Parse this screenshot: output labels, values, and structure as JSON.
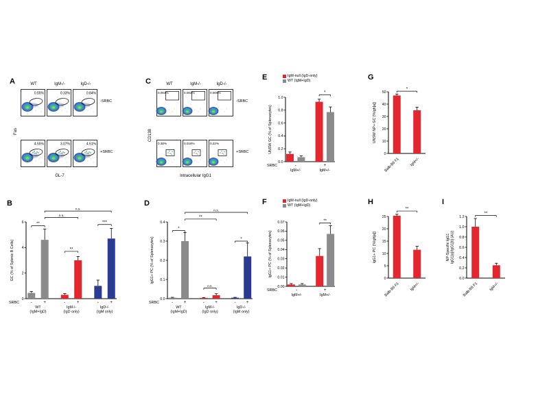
{
  "colors": {
    "red": "#e4272e",
    "gray": "#8b8b8e",
    "blue": "#2b3a92",
    "black": "#000000"
  },
  "flow": {
    "A": {
      "letter": "A",
      "cols": [
        "WT",
        "IgM-/-",
        "IgD-/-"
      ],
      "rows": [
        "-SRBC",
        "+SRBC"
      ],
      "xlabel": "GL-7",
      "ylabel": "Fas",
      "pcts": [
        [
          "0.55%",
          "0.33%",
          "0.84%"
        ],
        [
          "4.55%",
          "3.07%",
          "4.61%"
        ]
      ]
    },
    "C": {
      "letter": "C",
      "cols": [
        "WT",
        "IgM-/-",
        "IgD-/-"
      ],
      "rows": [
        "-SRBC",
        "+SRBC"
      ],
      "xlabel": "Intracellular IgG1",
      "ylabel": "CD138",
      "pcts": [
        [
          "0.003%",
          "0.002%",
          "0.006%"
        ],
        [
          "0.30%",
          "0.018%",
          "0.22%"
        ]
      ]
    }
  },
  "legend_EF": [
    {
      "label": "IgM-null (IgD-only)",
      "color": "red"
    },
    {
      "label": "WT (IgM+IgD)",
      "color": "gray"
    }
  ],
  "chart_data": [
    {
      "id": "B",
      "letter": "B",
      "type": "bar",
      "ylabel": "GC (% of Splenic B Cells)",
      "ylim": [
        0,
        6
      ],
      "yticks": [
        "0",
        "2",
        "4",
        "6"
      ],
      "xmax": 6.8,
      "bars": [
        {
          "x": 0.4,
          "v": 0.45,
          "e": 0.12,
          "c": "gray"
        },
        {
          "x": 1.4,
          "v": 4.6,
          "e": 0.85,
          "c": "gray"
        },
        {
          "x": 2.9,
          "v": 0.3,
          "e": 0.1,
          "c": "red"
        },
        {
          "x": 3.9,
          "v": 3.0,
          "e": 0.3,
          "c": "red"
        },
        {
          "x": 5.4,
          "v": 1.0,
          "e": 0.45,
          "c": "blue"
        },
        {
          "x": 6.4,
          "v": 4.7,
          "e": 0.8,
          "c": "blue"
        }
      ],
      "xticks": [
        {
          "x": 0.4,
          "t": "-"
        },
        {
          "x": 1.4,
          "t": "+"
        },
        {
          "x": 2.9,
          "t": "-"
        },
        {
          "x": 3.9,
          "t": "+"
        },
        {
          "x": 5.4,
          "t": "-"
        },
        {
          "x": 6.4,
          "t": "+"
        }
      ],
      "xlabel_left": "SRBC",
      "groups": [
        {
          "x": 0.9,
          "lines": [
            "WT",
            "(IgM+IgD)"
          ]
        },
        {
          "x": 3.4,
          "lines": [
            "IgM-/-",
            "(IgD only)"
          ]
        },
        {
          "x": 5.9,
          "lines": [
            "IgD-/-",
            "(IgM only)"
          ]
        }
      ],
      "sigs": [
        {
          "x1": 0.4,
          "x2": 1.4,
          "y": 5.7,
          "t": "**"
        },
        {
          "x1": 2.9,
          "x2": 3.9,
          "y": 3.7,
          "t": "**"
        },
        {
          "x1": 5.4,
          "x2": 6.4,
          "y": 5.8,
          "t": "***"
        },
        {
          "x1": 1.4,
          "x2": 3.9,
          "y": 6.35,
          "t": "n.s."
        },
        {
          "x1": 1.4,
          "x2": 6.4,
          "y": 6.85,
          "t": "n.s."
        }
      ]
    },
    {
      "id": "D",
      "letter": "D",
      "type": "bar",
      "ylabel": "IgG1+ PC (% of Splenocytes)",
      "ylim": [
        0,
        0.4
      ],
      "yticks": [
        "0.0",
        "0.1",
        "0.2",
        "0.3",
        "0.4"
      ],
      "xmax": 6.8,
      "bars": [
        {
          "x": 0.4,
          "v": 0.005,
          "e": 0.002,
          "c": "gray"
        },
        {
          "x": 1.4,
          "v": 0.3,
          "e": 0.045,
          "c": "gray"
        },
        {
          "x": 2.9,
          "v": 0.004,
          "e": 0.002,
          "c": "red"
        },
        {
          "x": 3.9,
          "v": 0.018,
          "e": 0.008,
          "c": "red"
        },
        {
          "x": 5.4,
          "v": 0.005,
          "e": 0.002,
          "c": "blue"
        },
        {
          "x": 6.4,
          "v": 0.22,
          "e": 0.07,
          "c": "blue"
        }
      ],
      "xticks": [
        {
          "x": 0.4,
          "t": "-"
        },
        {
          "x": 1.4,
          "t": "+"
        },
        {
          "x": 2.9,
          "t": "-"
        },
        {
          "x": 3.9,
          "t": "+"
        },
        {
          "x": 5.4,
          "t": "-"
        },
        {
          "x": 6.4,
          "t": "+"
        }
      ],
      "xlabel_left": "SRBC",
      "groups": [
        {
          "x": 0.9,
          "lines": [
            "WT",
            "(IgM+IgD)"
          ]
        },
        {
          "x": 3.4,
          "lines": [
            "IgM-/-",
            "(IgD only)"
          ]
        },
        {
          "x": 5.9,
          "lines": [
            "IgD-/-",
            "(IgM only)"
          ]
        }
      ],
      "sigs": [
        {
          "x1": 0.4,
          "x2": 1.4,
          "y": 0.355,
          "t": "*"
        },
        {
          "x1": 2.9,
          "x2": 3.9,
          "y": 0.055,
          "t": "n.s."
        },
        {
          "x1": 5.4,
          "x2": 6.4,
          "y": 0.3,
          "t": "*"
        },
        {
          "x1": 1.4,
          "x2": 3.9,
          "y": 0.415,
          "t": "**"
        },
        {
          "x1": 1.4,
          "x2": 6.4,
          "y": 0.45,
          "t": "n.s."
        }
      ]
    },
    {
      "id": "E",
      "letter": "E",
      "type": "bar",
      "ylabel": "UNSW GC (% of Splenocytes)",
      "ylim": [
        0,
        1.0
      ],
      "yticks": [
        "0.0",
        "0.2",
        "0.4",
        "0.6",
        "0.8",
        "1.0"
      ],
      "xmax": 4.4,
      "bars": [
        {
          "x": 0.4,
          "v": 0.12,
          "e": 0.03,
          "c": "red"
        },
        {
          "x": 1.4,
          "v": 0.07,
          "e": 0.02,
          "c": "gray"
        },
        {
          "x": 3.0,
          "v": 0.93,
          "e": 0.04,
          "c": "red"
        },
        {
          "x": 4.0,
          "v": 0.77,
          "e": 0.08,
          "c": "gray"
        }
      ],
      "xticks": [
        {
          "x": 0.9,
          "t": "-"
        },
        {
          "x": 3.5,
          "t": "+"
        }
      ],
      "xlabel_left": "SRBC",
      "groups": [
        {
          "x": 0.9,
          "lines": [
            "IgM+/-"
          ]
        },
        {
          "x": 3.5,
          "lines": [
            "IgM+/-"
          ]
        }
      ],
      "sigs": [
        {
          "x1": 3.0,
          "x2": 4.0,
          "y": 1.04,
          "t": "*"
        }
      ]
    },
    {
      "id": "F",
      "letter": "F",
      "type": "bar",
      "ylabel": "IgG1+ PC (% of Splenocytes)",
      "ylim": [
        0,
        0.07
      ],
      "yticks": [
        "0.00",
        "0.01",
        "0.02",
        "0.03",
        "0.04",
        "0.05",
        "0.06",
        "0.07"
      ],
      "xmax": 4.4,
      "bars": [
        {
          "x": 0.4,
          "v": 0.002,
          "e": 0.001,
          "c": "red"
        },
        {
          "x": 1.4,
          "v": 0.002,
          "e": 0.001,
          "c": "gray"
        },
        {
          "x": 3.0,
          "v": 0.033,
          "e": 0.008,
          "c": "red"
        },
        {
          "x": 4.0,
          "v": 0.057,
          "e": 0.009,
          "c": "gray"
        }
      ],
      "xticks": [
        {
          "x": 0.9,
          "t": "-"
        },
        {
          "x": 3.5,
          "t": "+"
        }
      ],
      "xlabel_left": "SRBC",
      "groups": [
        {
          "x": 0.9,
          "lines": [
            "IgM+/-"
          ]
        },
        {
          "x": 3.5,
          "lines": [
            "IgM+/-"
          ]
        }
      ],
      "sigs": [
        {
          "x1": 3.0,
          "x2": 4.0,
          "y": 0.069,
          "t": "**"
        }
      ]
    },
    {
      "id": "G",
      "letter": "G",
      "type": "bar",
      "ylabel": "UNSW NP+ GC (%Igh[a])",
      "ylim": [
        0,
        50
      ],
      "yticks": [
        "0",
        "10",
        "20",
        "30",
        "40",
        "50"
      ],
      "xmax": 2.2,
      "bars": [
        {
          "x": 0.5,
          "v": 47,
          "e": 1.2,
          "c": "red"
        },
        {
          "x": 1.7,
          "v": 35,
          "e": 2.5,
          "c": "red"
        }
      ],
      "rot": [
        {
          "x": 0.5,
          "t": "Balb-B6 F1"
        },
        {
          "x": 1.7,
          "t": "IgM+/-"
        }
      ],
      "sigs": [
        {
          "x1": 0.5,
          "x2": 1.7,
          "y": 50.5,
          "t": "*"
        }
      ]
    },
    {
      "id": "H",
      "letter": "H",
      "type": "bar",
      "ylabel": "IgG1+ PC (%Igh[a])",
      "ylim": [
        0,
        25
      ],
      "yticks": [
        "0",
        "5",
        "10",
        "15",
        "20",
        "25"
      ],
      "xmax": 2.2,
      "bars": [
        {
          "x": 0.5,
          "v": 25.3,
          "e": 0.6,
          "c": "red"
        },
        {
          "x": 1.7,
          "v": 11.5,
          "e": 1.4,
          "c": "red"
        }
      ],
      "rot": [
        {
          "x": 0.5,
          "t": "Balb-B6 F1"
        },
        {
          "x": 1.7,
          "t": "IgM+/-"
        }
      ],
      "sigs": [
        {
          "x1": 0.5,
          "x2": 1.7,
          "y": 27.2,
          "t": "**"
        }
      ]
    },
    {
      "id": "I",
      "letter": "I",
      "type": "bar",
      "ylabel": "NP-Specific IgG1",
      "ylabel2": "IgG1[a]/IgG1[b] (AU)",
      "ylim": [
        0,
        1.2
      ],
      "yticks": [
        "0.0",
        "0.2",
        "0.4",
        "0.6",
        "0.8",
        "1.0",
        "1.2"
      ],
      "xmax": 2.2,
      "bars": [
        {
          "x": 0.5,
          "v": 1.0,
          "e": 0.16,
          "c": "red"
        },
        {
          "x": 1.7,
          "v": 0.25,
          "e": 0.04,
          "c": "red"
        }
      ],
      "rot": [
        {
          "x": 0.5,
          "t": "Balb-B6 F1"
        },
        {
          "x": 1.7,
          "t": "IgM+/-"
        }
      ],
      "sigs": [
        {
          "x1": 0.5,
          "x2": 1.7,
          "y": 1.22,
          "t": "**"
        }
      ]
    }
  ]
}
